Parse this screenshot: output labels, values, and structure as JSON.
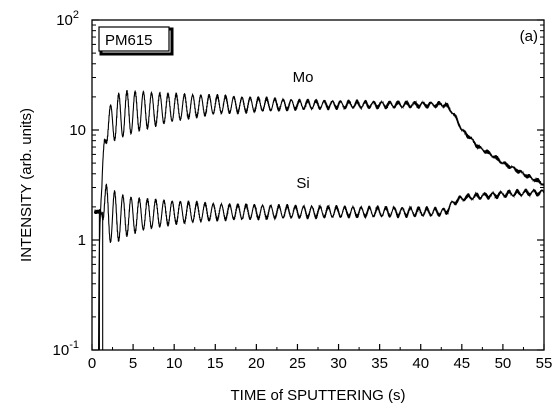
{
  "chart_data": {
    "type": "line",
    "sample_label": "PM615",
    "panel_label": "(a)",
    "xlabel": "TIME of SPUTTERING (s)",
    "ylabel": "INTENSITY (arb. units)",
    "xlim": [
      0,
      55
    ],
    "ylim": [
      0.1,
      100
    ],
    "y_scale": "log",
    "grid": false,
    "x_ticks": [
      "0",
      "5",
      "10",
      "15",
      "20",
      "25",
      "30",
      "35",
      "40",
      "45",
      "50",
      "55"
    ],
    "y_ticks": [
      {
        "value": 0.1,
        "base": "10",
        "exp": "-1"
      },
      {
        "value": 1,
        "base": "1",
        "exp": ""
      },
      {
        "value": 10,
        "base": "10",
        "exp": ""
      },
      {
        "value": 100,
        "base": "10",
        "exp": "2"
      }
    ],
    "oscillation_period": 1.0,
    "series": [
      {
        "name": "Mo",
        "x": [
          0.8,
          1.2,
          1.5,
          2,
          3,
          4,
          6,
          8,
          10,
          15,
          20,
          25,
          30,
          35,
          40,
          43,
          44,
          45,
          47,
          50,
          53,
          55
        ],
        "y": [
          0.1,
          3,
          8,
          11,
          13,
          14,
          15,
          15.5,
          16,
          17,
          17,
          17,
          17,
          17,
          17,
          17,
          14,
          10,
          7,
          5,
          3.8,
          3.2
        ],
        "amplitude": [
          0,
          0,
          0.03,
          0.15,
          0.2,
          0.2,
          0.17,
          0.14,
          0.12,
          0.08,
          0.06,
          0.04,
          0.03,
          0.025,
          0.02,
          0.015,
          0.01,
          0.01,
          0.01,
          0.01,
          0.01,
          0.01
        ]
      },
      {
        "name": "Si",
        "x": [
          0.3,
          0.8,
          1.2,
          1.5,
          2,
          3,
          4,
          6,
          8,
          10,
          15,
          20,
          25,
          30,
          35,
          40,
          43,
          44,
          45,
          47,
          50,
          53,
          55
        ],
        "y": [
          1.8,
          1.8,
          1.9,
          2.0,
          1.7,
          1.6,
          1.65,
          1.7,
          1.75,
          1.78,
          1.8,
          1.8,
          1.8,
          1.8,
          1.8,
          1.8,
          1.8,
          2.2,
          2.4,
          2.5,
          2.6,
          2.7,
          2.7
        ],
        "amplitude": [
          0,
          0,
          0.05,
          0.2,
          0.25,
          0.22,
          0.18,
          0.14,
          0.12,
          0.1,
          0.07,
          0.06,
          0.05,
          0.045,
          0.04,
          0.035,
          0.03,
          0.02,
          0.02,
          0.02,
          0.02,
          0.02,
          0.02
        ]
      }
    ]
  }
}
